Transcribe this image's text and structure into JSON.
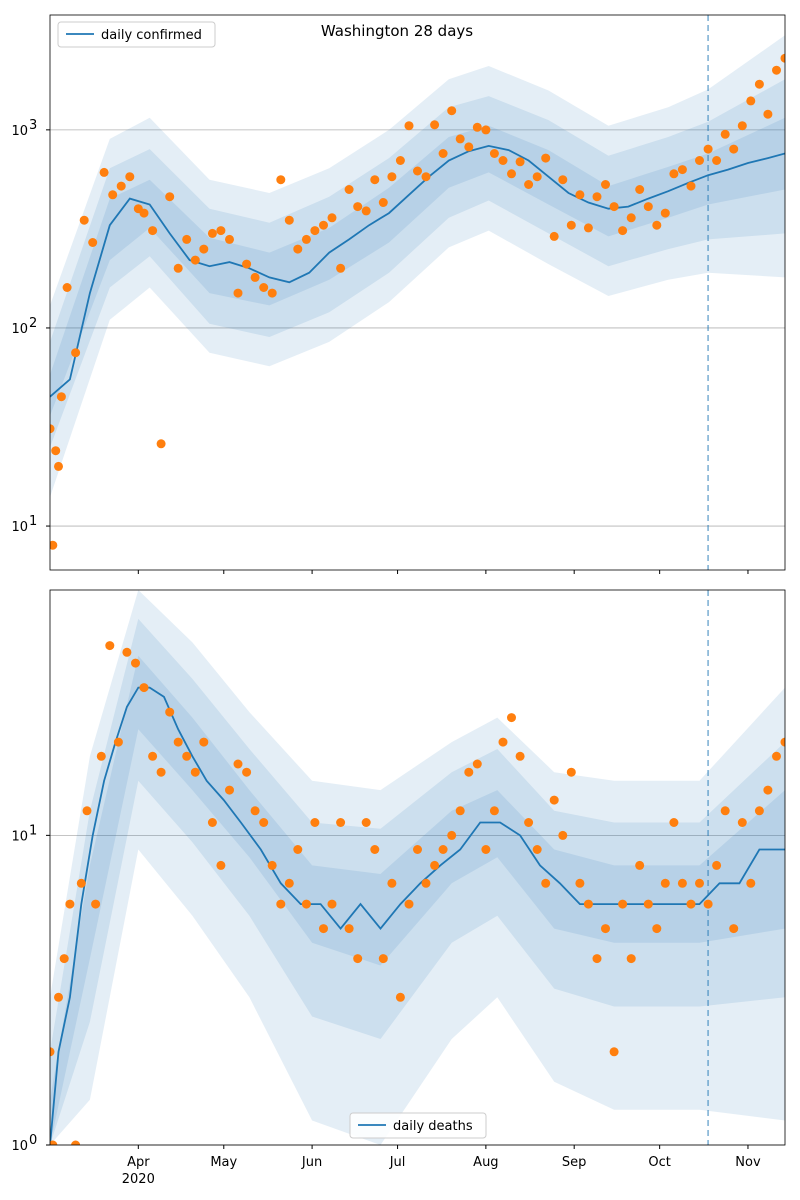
{
  "figure_title": "Washington 28 days",
  "colors": {
    "line": "#1f77b4",
    "points": "#ff7f0e",
    "band": "#1f77b4",
    "grid": "#b0b0b0",
    "axis": "#000000"
  },
  "x_ticks": [
    {
      "label": "Apr",
      "sublabel": "2020",
      "day": 31
    },
    {
      "label": "May",
      "sublabel": "",
      "day": 61
    },
    {
      "label": "Jun",
      "sublabel": "",
      "day": 92
    },
    {
      "label": "Jul",
      "sublabel": "",
      "day": 122
    },
    {
      "label": "Aug",
      "sublabel": "",
      "day": 153
    },
    {
      "label": "Sep",
      "sublabel": "",
      "day": 184
    },
    {
      "label": "Oct",
      "sublabel": "",
      "day": 214
    },
    {
      "label": "Nov",
      "sublabel": "",
      "day": 245
    }
  ],
  "chart_data": [
    {
      "type": "line",
      "title": "Washington 28 days",
      "ylabel": "",
      "xlabel": "",
      "y_scale": "log",
      "ylim": [
        6,
        3800
      ],
      "xlim": [
        "2020-03-01",
        "2020-11-14"
      ],
      "y_ticks": [
        {
          "label": "10",
          "exp": "1",
          "value": 10
        },
        {
          "label": "10",
          "exp": "2",
          "value": 100
        },
        {
          "label": "10",
          "exp": "3",
          "value": 1000
        }
      ],
      "grid": "horizontal",
      "legend_position": "upper-left",
      "forecast_start": "2020-10-18",
      "series": [
        {
          "name": "daily confirmed",
          "kind": "line",
          "x": [
            "2020-03-01",
            "2020-03-08",
            "2020-03-15",
            "2020-03-22",
            "2020-03-29",
            "2020-04-05",
            "2020-04-12",
            "2020-04-19",
            "2020-04-26",
            "2020-05-03",
            "2020-05-10",
            "2020-05-17",
            "2020-05-24",
            "2020-05-31",
            "2020-06-07",
            "2020-06-14",
            "2020-06-21",
            "2020-06-28",
            "2020-07-05",
            "2020-07-12",
            "2020-07-19",
            "2020-07-26",
            "2020-08-02",
            "2020-08-09",
            "2020-08-16",
            "2020-08-23",
            "2020-08-30",
            "2020-09-06",
            "2020-09-13",
            "2020-09-20",
            "2020-09-27",
            "2020-10-04",
            "2020-10-11",
            "2020-10-18",
            "2020-10-25",
            "2020-11-01",
            "2020-11-08",
            "2020-11-14"
          ],
          "values": [
            45,
            55,
            150,
            330,
            450,
            420,
            300,
            220,
            205,
            215,
            200,
            180,
            170,
            190,
            240,
            280,
            330,
            380,
            470,
            580,
            700,
            780,
            830,
            790,
            700,
            580,
            480,
            430,
            400,
            410,
            450,
            490,
            540,
            590,
            630,
            680,
            720,
            760
          ]
        },
        {
          "name": "",
          "kind": "band_50",
          "x": [
            "2020-03-01",
            "2020-03-22",
            "2020-04-05",
            "2020-04-26",
            "2020-05-17",
            "2020-06-07",
            "2020-06-28",
            "2020-07-19",
            "2020-08-02",
            "2020-08-23",
            "2020-09-13",
            "2020-10-04",
            "2020-10-18",
            "2020-11-14"
          ],
          "lower": [
            36,
            220,
            320,
            150,
            130,
            175,
            270,
            510,
            610,
            420,
            290,
            360,
            420,
            500
          ],
          "upper": [
            58,
            450,
            560,
            285,
            240,
            320,
            510,
            920,
            1050,
            790,
            520,
            650,
            760,
            1150
          ]
        },
        {
          "name": "",
          "kind": "band_80",
          "x": [
            "2020-03-01",
            "2020-03-22",
            "2020-04-05",
            "2020-04-26",
            "2020-05-17",
            "2020-06-07",
            "2020-06-28",
            "2020-07-19",
            "2020-08-02",
            "2020-08-23",
            "2020-09-13",
            "2020-10-04",
            "2020-10-18",
            "2020-11-14"
          ],
          "lower": [
            25,
            160,
            230,
            105,
            90,
            120,
            190,
            360,
            440,
            300,
            205,
            250,
            280,
            300
          ],
          "upper": [
            85,
            640,
            800,
            400,
            340,
            460,
            720,
            1300,
            1480,
            1120,
            740,
            920,
            1100,
            1800
          ]
        },
        {
          "name": "",
          "kind": "band_95",
          "x": [
            "2020-03-01",
            "2020-03-22",
            "2020-04-05",
            "2020-04-26",
            "2020-05-17",
            "2020-06-07",
            "2020-06-28",
            "2020-07-19",
            "2020-08-02",
            "2020-08-23",
            "2020-09-13",
            "2020-10-04",
            "2020-10-18",
            "2020-11-14"
          ],
          "lower": [
            14,
            110,
            160,
            75,
            64,
            85,
            135,
            255,
            310,
            210,
            145,
            175,
            190,
            180
          ],
          "upper": [
            130,
            900,
            1150,
            560,
            480,
            640,
            1000,
            1800,
            2100,
            1580,
            1050,
            1300,
            1600,
            3000
          ]
        },
        {
          "name": "",
          "kind": "points",
          "x": [
            "2020-03-01",
            "2020-03-02",
            "2020-03-03",
            "2020-03-04",
            "2020-03-05",
            "2020-03-07",
            "2020-03-10",
            "2020-03-13",
            "2020-03-16",
            "2020-03-20",
            "2020-03-23",
            "2020-03-26",
            "2020-03-29",
            "2020-04-01",
            "2020-04-03",
            "2020-04-06",
            "2020-04-09",
            "2020-04-12",
            "2020-04-15",
            "2020-04-18",
            "2020-04-21",
            "2020-04-24",
            "2020-04-27",
            "2020-04-30",
            "2020-05-03",
            "2020-05-06",
            "2020-05-09",
            "2020-05-12",
            "2020-05-15",
            "2020-05-18",
            "2020-05-21",
            "2020-05-24",
            "2020-05-27",
            "2020-05-30",
            "2020-06-02",
            "2020-06-05",
            "2020-06-08",
            "2020-06-11",
            "2020-06-14",
            "2020-06-17",
            "2020-06-20",
            "2020-06-23",
            "2020-06-26",
            "2020-06-29",
            "2020-07-02",
            "2020-07-05",
            "2020-07-08",
            "2020-07-11",
            "2020-07-14",
            "2020-07-17",
            "2020-07-20",
            "2020-07-23",
            "2020-07-26",
            "2020-07-29",
            "2020-08-01",
            "2020-08-04",
            "2020-08-07",
            "2020-08-10",
            "2020-08-13",
            "2020-08-16",
            "2020-08-19",
            "2020-08-22",
            "2020-08-25",
            "2020-08-28",
            "2020-08-31",
            "2020-09-03",
            "2020-09-06",
            "2020-09-09",
            "2020-09-12",
            "2020-09-15",
            "2020-09-18",
            "2020-09-21",
            "2020-09-24",
            "2020-09-27",
            "2020-09-30",
            "2020-10-03",
            "2020-10-06",
            "2020-10-09",
            "2020-10-12",
            "2020-10-15",
            "2020-10-18",
            "2020-10-21",
            "2020-10-24",
            "2020-10-27",
            "2020-10-30",
            "2020-11-02",
            "2020-11-05",
            "2020-11-08",
            "2020-11-11",
            "2020-11-14"
          ],
          "values": [
            31,
            8,
            24,
            20,
            45,
            160,
            75,
            350,
            270,
            610,
            470,
            520,
            580,
            400,
            380,
            310,
            26,
            460,
            200,
            280,
            220,
            250,
            300,
            310,
            280,
            150,
            210,
            180,
            160,
            150,
            560,
            350,
            250,
            280,
            310,
            330,
            360,
            200,
            500,
            410,
            390,
            560,
            430,
            580,
            700,
            1050,
            620,
            580,
            1060,
            760,
            1250,
            900,
            820,
            1030,
            1000,
            760,
            700,
            600,
            690,
            530,
            580,
            720,
            290,
            560,
            330,
            470,
            320,
            460,
            530,
            410,
            310,
            360,
            500,
            410,
            330,
            380,
            600,
            630,
            520,
            700,
            800,
            700,
            950,
            800,
            1050,
            1400,
            1700,
            1200,
            2000,
            2300
          ]
        }
      ]
    },
    {
      "type": "line",
      "title": "",
      "ylabel": "",
      "xlabel": "",
      "y_scale": "log",
      "ylim": [
        1,
        62
      ],
      "xlim": [
        "2020-03-01",
        "2020-11-14"
      ],
      "y_ticks": [
        {
          "label": "10",
          "exp": "0",
          "value": 1
        },
        {
          "label": "10",
          "exp": "1",
          "value": 10
        }
      ],
      "grid": "horizontal",
      "legend_position": "lower-center",
      "forecast_start": "2020-10-18",
      "series": [
        {
          "name": "daily deaths",
          "kind": "line",
          "x": [
            "2020-03-01",
            "2020-03-04",
            "2020-03-08",
            "2020-03-12",
            "2020-03-16",
            "2020-03-20",
            "2020-03-24",
            "2020-03-28",
            "2020-04-01",
            "2020-04-05",
            "2020-04-10",
            "2020-04-15",
            "2020-04-20",
            "2020-04-25",
            "2020-05-01",
            "2020-05-07",
            "2020-05-14",
            "2020-05-21",
            "2020-05-28",
            "2020-06-04",
            "2020-06-11",
            "2020-06-18",
            "2020-06-25",
            "2020-07-02",
            "2020-07-09",
            "2020-07-16",
            "2020-07-23",
            "2020-07-30",
            "2020-08-06",
            "2020-08-13",
            "2020-08-20",
            "2020-08-27",
            "2020-09-03",
            "2020-09-10",
            "2020-09-17",
            "2020-09-24",
            "2020-10-01",
            "2020-10-08",
            "2020-10-15",
            "2020-10-22",
            "2020-10-29",
            "2020-11-05",
            "2020-11-14"
          ],
          "values": [
            1,
            2,
            3,
            6,
            10,
            15,
            20,
            26,
            30,
            30,
            28,
            22,
            18,
            15,
            13,
            11,
            9,
            7,
            6,
            6,
            5,
            6,
            5,
            6,
            7,
            8,
            9,
            11,
            11,
            10,
            8,
            7,
            6,
            6,
            6,
            6,
            6,
            6,
            6,
            7,
            7,
            9,
            9
          ]
        },
        {
          "name": "",
          "kind": "band_50",
          "x": [
            "2020-03-01",
            "2020-03-15",
            "2020-04-01",
            "2020-04-20",
            "2020-05-10",
            "2020-06-01",
            "2020-06-25",
            "2020-07-20",
            "2020-08-05",
            "2020-08-25",
            "2020-09-15",
            "2020-10-15",
            "2020-11-14"
          ],
          "lower": [
            1,
            4,
            22,
            14,
            8.5,
            4.5,
            3.8,
            7,
            8.5,
            5,
            4.5,
            4.5,
            5
          ],
          "upper": [
            1.4,
            8,
            38,
            24,
            14,
            8,
            7.5,
            12,
            14,
            9,
            8,
            8,
            14
          ]
        },
        {
          "name": "",
          "kind": "band_80",
          "x": [
            "2020-03-01",
            "2020-03-15",
            "2020-04-01",
            "2020-04-20",
            "2020-05-10",
            "2020-06-01",
            "2020-06-25",
            "2020-07-20",
            "2020-08-05",
            "2020-08-25",
            "2020-09-15",
            "2020-10-15",
            "2020-11-14"
          ],
          "lower": [
            1,
            2.5,
            15,
            9.5,
            5.5,
            2.6,
            2.2,
            4.5,
            5.5,
            3.2,
            2.8,
            2.8,
            3
          ],
          "upper": [
            2,
            12,
            50,
            32,
            19,
            11,
            10.5,
            16,
            19,
            12,
            11,
            11,
            20
          ]
        },
        {
          "name": "",
          "kind": "band_95",
          "x": [
            "2020-03-01",
            "2020-03-15",
            "2020-04-01",
            "2020-04-20",
            "2020-05-10",
            "2020-06-01",
            "2020-06-25",
            "2020-07-20",
            "2020-08-05",
            "2020-08-25",
            "2020-09-15",
            "2020-10-15",
            "2020-11-14"
          ],
          "lower": [
            1,
            1.4,
            9,
            5.5,
            3,
            1.2,
            1,
            2.2,
            3,
            1.6,
            1.3,
            1.3,
            1.2
          ],
          "upper": [
            3,
            18,
            62,
            42,
            25,
            15,
            14,
            20,
            24,
            16,
            15,
            15,
            30
          ]
        },
        {
          "name": "",
          "kind": "points",
          "x": [
            "2020-03-01",
            "2020-03-02",
            "2020-03-04",
            "2020-03-06",
            "2020-03-08",
            "2020-03-10",
            "2020-03-12",
            "2020-03-14",
            "2020-03-17",
            "2020-03-19",
            "2020-03-22",
            "2020-03-25",
            "2020-03-28",
            "2020-03-31",
            "2020-04-03",
            "2020-04-06",
            "2020-04-09",
            "2020-04-12",
            "2020-04-15",
            "2020-04-18",
            "2020-04-21",
            "2020-04-24",
            "2020-04-27",
            "2020-04-30",
            "2020-05-03",
            "2020-05-06",
            "2020-05-09",
            "2020-05-12",
            "2020-05-15",
            "2020-05-18",
            "2020-05-21",
            "2020-05-24",
            "2020-05-27",
            "2020-05-30",
            "2020-06-02",
            "2020-06-05",
            "2020-06-08",
            "2020-06-11",
            "2020-06-14",
            "2020-06-17",
            "2020-06-20",
            "2020-06-23",
            "2020-06-26",
            "2020-06-29",
            "2020-07-02",
            "2020-07-05",
            "2020-07-08",
            "2020-07-11",
            "2020-07-14",
            "2020-07-17",
            "2020-07-20",
            "2020-07-23",
            "2020-07-26",
            "2020-07-29",
            "2020-08-01",
            "2020-08-04",
            "2020-08-07",
            "2020-08-10",
            "2020-08-13",
            "2020-08-16",
            "2020-08-19",
            "2020-08-22",
            "2020-08-25",
            "2020-08-28",
            "2020-08-31",
            "2020-09-03",
            "2020-09-06",
            "2020-09-09",
            "2020-09-12",
            "2020-09-15",
            "2020-09-18",
            "2020-09-21",
            "2020-09-24",
            "2020-09-27",
            "2020-09-30",
            "2020-10-03",
            "2020-10-06",
            "2020-10-09",
            "2020-10-12",
            "2020-10-15",
            "2020-10-18",
            "2020-10-21",
            "2020-10-24",
            "2020-10-27",
            "2020-10-30",
            "2020-11-02",
            "2020-11-05",
            "2020-11-08",
            "2020-11-11",
            "2020-11-14"
          ],
          "values": [
            2,
            1,
            3,
            4,
            6,
            1,
            7,
            12,
            6,
            18,
            41,
            20,
            39,
            36,
            30,
            18,
            16,
            25,
            20,
            18,
            16,
            20,
            11,
            8,
            14,
            17,
            16,
            12,
            11,
            8,
            6,
            7,
            9,
            6,
            11,
            5,
            6,
            11,
            5,
            4,
            11,
            9,
            4,
            7,
            3,
            6,
            9,
            7,
            8,
            9,
            10,
            12,
            16,
            17,
            9,
            12,
            20,
            24,
            18,
            11,
            9,
            7,
            13,
            10,
            16,
            7,
            6,
            4,
            5,
            2,
            6,
            4,
            8,
            6,
            5,
            7,
            11,
            7,
            6,
            7,
            6,
            8,
            12,
            5,
            11,
            7,
            12,
            14,
            18,
            20
          ]
        }
      ]
    }
  ]
}
